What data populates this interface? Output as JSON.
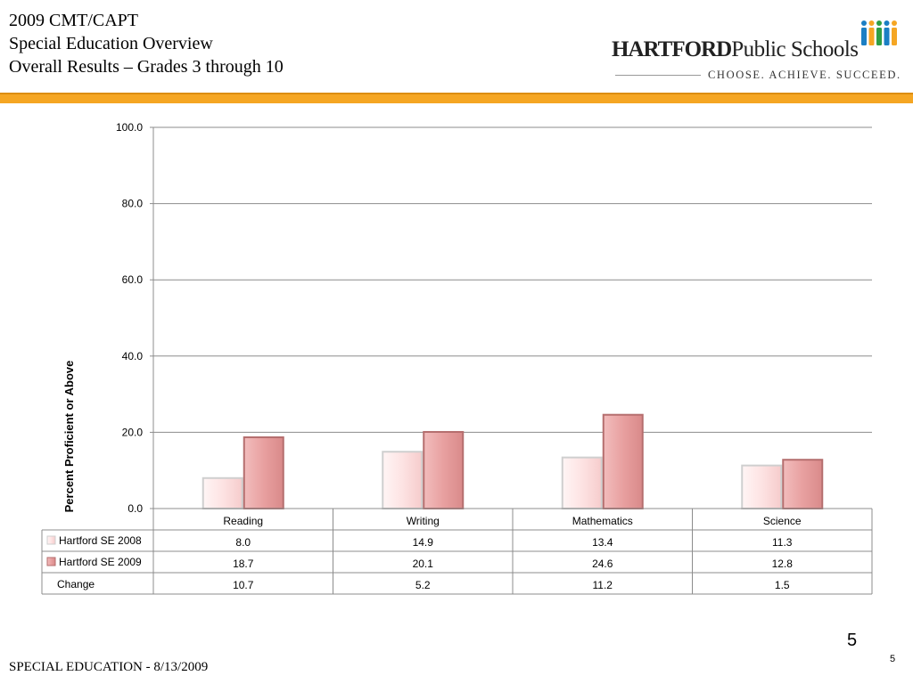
{
  "header": {
    "title_lines": [
      "2009 CMT/CAPT",
      "Special Education Overview",
      "Overall Results – Grades 3 through 10"
    ]
  },
  "logo": {
    "name_bold": "HARTFORD",
    "name_regular": "Public Schools",
    "tagline": "CHOOSE. ACHIEVE. SUCCEED.",
    "figure_colors": [
      "#1b7fc4",
      "#f5a623",
      "#2f9e44",
      "#1b7fc4",
      "#f5a623"
    ]
  },
  "chart_data": {
    "type": "bar",
    "categories": [
      "Reading",
      "Writing",
      "Mathematics",
      "Science"
    ],
    "series": [
      {
        "name": "Hartford SE 2008",
        "values": [
          8.0,
          14.9,
          13.4,
          11.3
        ],
        "color": "#fde3e3"
      },
      {
        "name": "Hartford SE 2009",
        "values": [
          18.7,
          20.1,
          24.6,
          12.8
        ],
        "color": "#e8a0a0"
      }
    ],
    "extra_rows": [
      {
        "name": "Change",
        "values": [
          10.7,
          5.2,
          11.2,
          1.5
        ]
      }
    ],
    "ylabel": "Percent Proficient or Above",
    "ylim": [
      0,
      100
    ],
    "yticks": [
      "0.0",
      "20.0",
      "40.0",
      "60.0",
      "80.0",
      "100.0"
    ],
    "grid": true,
    "legend": "data-table"
  },
  "footer": {
    "left": "SPECIAL EDUCATION - 8/13/2009",
    "page_big": "5",
    "page_small": "5"
  }
}
